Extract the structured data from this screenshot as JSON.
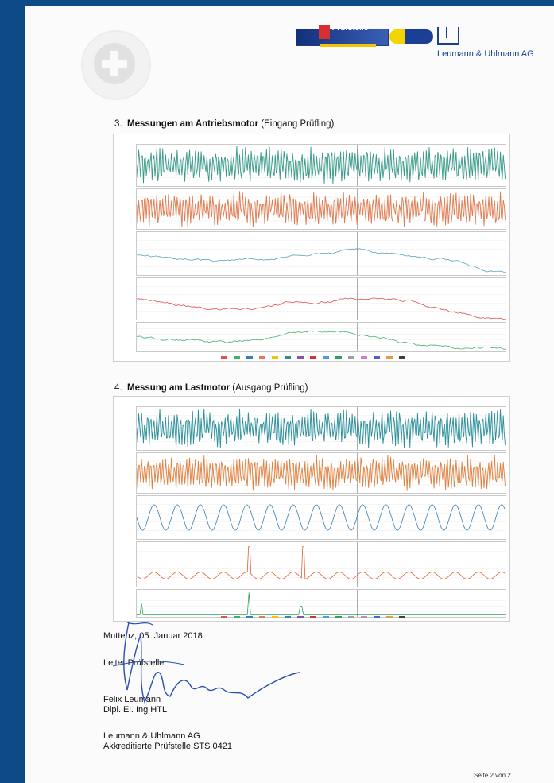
{
  "header": {
    "logo_text": "Prüfstelle",
    "company": "Leumann & Uhlmann AG",
    "seal_icon": "swiss-cross-seal"
  },
  "sections": [
    {
      "number": "3.",
      "title": "Messungen am Antriebsmotor",
      "subtitle": "(Eingang Prüfling)"
    },
    {
      "number": "4.",
      "title": "Messung am Lastmotor",
      "subtitle": "(Ausgang Prüfling)"
    }
  ],
  "chart_data": [
    {
      "type": "line",
      "series": [
        {
          "color": "#3a9a8a",
          "kind": "dense"
        },
        {
          "color": "#e07a50",
          "kind": "dense"
        },
        {
          "color": "#5aa0c0",
          "kind": "wander"
        },
        {
          "color": "#e05050",
          "kind": "wander"
        },
        {
          "color": "#40b070",
          "kind": "wander"
        }
      ]
    },
    {
      "type": "line",
      "series": [
        {
          "color": "#2a8f9a",
          "kind": "dense"
        },
        {
          "color": "#e08040",
          "kind": "dense"
        },
        {
          "color": "#3a7fb0",
          "kind": "wave"
        },
        {
          "color": "#e06030",
          "kind": "wave-spike"
        },
        {
          "color": "#30a060",
          "kind": "spike"
        }
      ]
    }
  ],
  "signature": {
    "place_date": "Muttenz, 05. Januar 2018",
    "role": "Leiter Prüfstelle",
    "name": "Felix Leumann",
    "title": "Dipl. El. Ing HTL",
    "org": "Leumann & Uhlmann AG",
    "accreditation": "Akkreditierte Prüfstelle STS 0421"
  },
  "footer": {
    "page": "Seite 2 von 2"
  }
}
